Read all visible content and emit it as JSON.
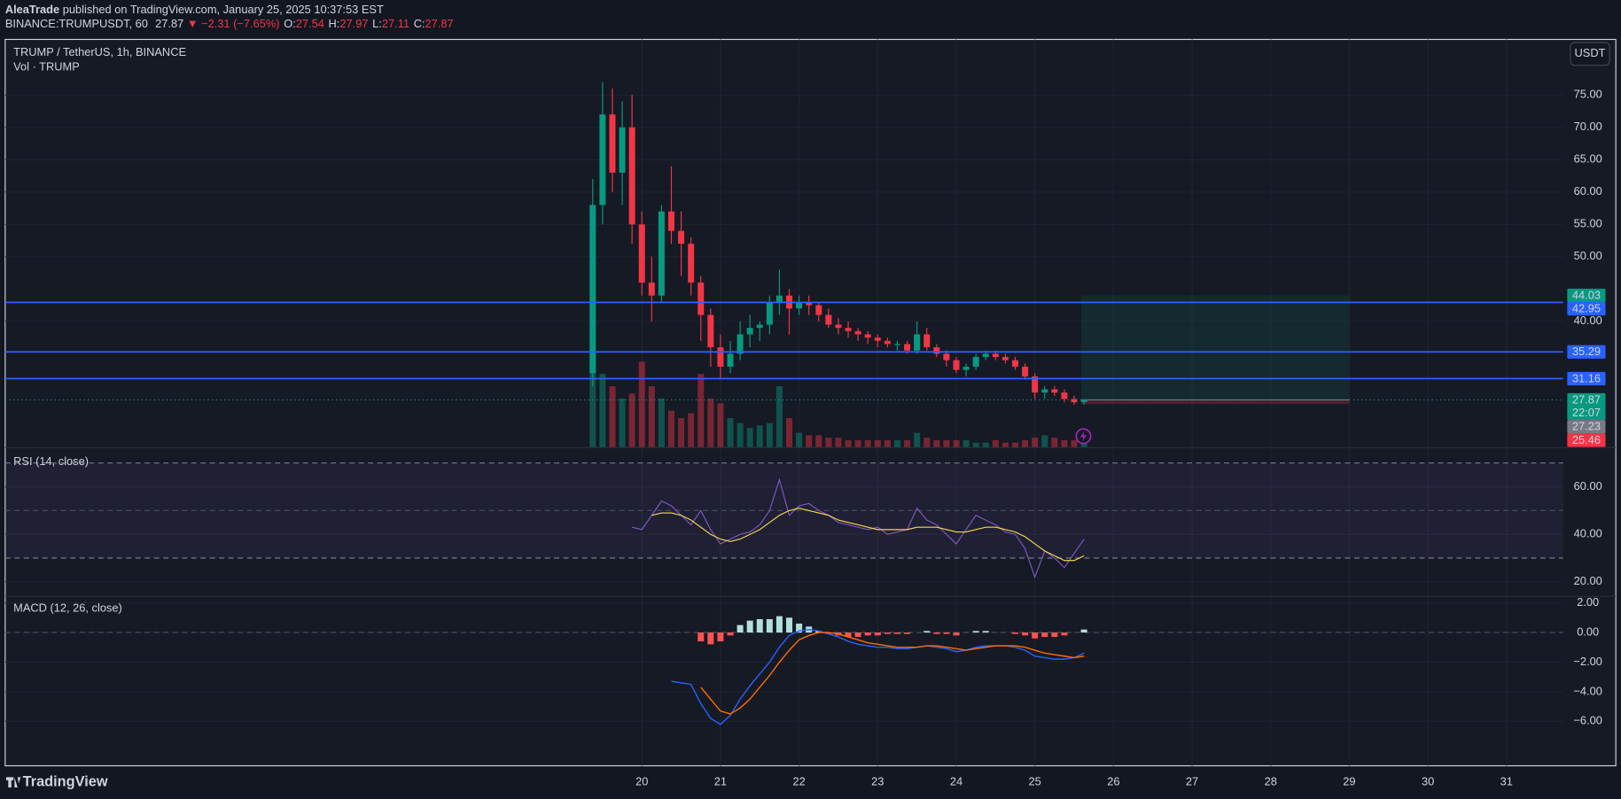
{
  "header": {
    "author": "AleaTrade",
    "published": "published on TradingView.com, January 25, 2025 10:37:53 EST",
    "symbol": "BINANCE:TRUMPUSDT, 60",
    "last": "27.87",
    "change": "▼ −2.31 (−7.65%)",
    "ohlc": [
      {
        "key": "O:",
        "value": "27.54"
      },
      {
        "key": "H:",
        "value": "27.97"
      },
      {
        "key": "L:",
        "value": "27.11"
      },
      {
        "key": "C:",
        "value": "27.87"
      }
    ],
    "currency": "USDT",
    "brand": "TradingView"
  },
  "chart_data": [
    {
      "type": "candlestick",
      "title": "TRUMP / TetherUS, 1h, BINANCE",
      "volume_label": "Vol · TRUMP",
      "up_color": "#089981",
      "down_color": "#f23645",
      "x": [
        19.375,
        19.5,
        19.625,
        19.75,
        19.875,
        20,
        20.125,
        20.25,
        20.375,
        20.5,
        20.625,
        20.75,
        20.875,
        21,
        21.125,
        21.25,
        21.375,
        21.5,
        21.625,
        21.75,
        21.875,
        22,
        22.125,
        22.25,
        22.375,
        22.5,
        22.625,
        22.75,
        22.875,
        23,
        23.125,
        23.25,
        23.375,
        23.5,
        23.625,
        23.75,
        23.875,
        24,
        24.125,
        24.25,
        24.375,
        24.5,
        24.625,
        24.75,
        24.875,
        25,
        25.125,
        25.25,
        25.375,
        25.5,
        25.625
      ],
      "open": [
        32,
        58,
        72,
        63,
        70,
        55,
        46,
        44,
        57,
        54,
        52,
        46,
        41,
        36,
        33,
        35,
        38,
        39,
        39.5,
        43,
        44,
        42,
        43,
        42.5,
        41,
        39.5,
        39,
        38.5,
        38,
        37.5,
        37,
        36.5,
        36.5,
        35.5,
        38,
        36,
        35,
        34,
        32.5,
        33,
        34.5,
        35,
        34.5,
        34,
        33,
        31.5,
        29,
        29.5,
        29,
        28,
        27.54
      ],
      "high": [
        62,
        77,
        76,
        74,
        75,
        57,
        50,
        58,
        64,
        57,
        53,
        47,
        42,
        38,
        37,
        40,
        41,
        40,
        44,
        48,
        45,
        44,
        44,
        43,
        42,
        40.5,
        40,
        39,
        38.5,
        38,
        37.5,
        37,
        37,
        40,
        39,
        36.5,
        35.5,
        34.5,
        33.5,
        35,
        35.5,
        35.5,
        35,
        34.5,
        33.5,
        32,
        30,
        30,
        29.5,
        28.5,
        27.97
      ],
      "low": [
        30,
        55,
        60,
        58,
        52,
        44,
        40,
        43,
        52,
        47,
        44,
        37,
        33,
        31,
        32,
        34,
        36,
        37,
        38,
        41,
        38,
        41,
        41,
        40,
        39,
        38,
        37.5,
        37,
        36.5,
        36,
        36,
        35.5,
        35,
        35,
        35.5,
        34.5,
        33,
        32,
        31.5,
        32.5,
        34,
        34,
        33.5,
        32.5,
        31,
        28,
        28,
        28.5,
        27.5,
        27.1,
        27.11
      ],
      "close": [
        58,
        72,
        63,
        70,
        55,
        46,
        44,
        57,
        54,
        52,
        46,
        41,
        36,
        33,
        35,
        38,
        39,
        39.5,
        43,
        44,
        42,
        43,
        42.5,
        41,
        39.5,
        39,
        38.5,
        38,
        37.5,
        37,
        36.5,
        36.5,
        35.5,
        38,
        36,
        35,
        34,
        32.5,
        33,
        34.5,
        35,
        34.5,
        34,
        33,
        31.5,
        29,
        29.5,
        29,
        28,
        27.5,
        27.87
      ],
      "volume": [
        40,
        30,
        25,
        20,
        22,
        35,
        25,
        20,
        15,
        12,
        14,
        30,
        20,
        18,
        12,
        10,
        8,
        9,
        10,
        25,
        12,
        6,
        5,
        5,
        4,
        4,
        3,
        3,
        3,
        3,
        3,
        3,
        3,
        6,
        4,
        3,
        3,
        3,
        3,
        2,
        2,
        3,
        2,
        2,
        3,
        4,
        5,
        4,
        3,
        3,
        2
      ],
      "xlim": [
        11.9,
        31.72
      ],
      "xticks": [
        20,
        21,
        22,
        23,
        24,
        25,
        26,
        27,
        28,
        29,
        30,
        31
      ],
      "ylim": [
        20.5,
        83.6
      ],
      "yticks": [
        {
          "value": 40,
          "label": "40.00"
        },
        {
          "value": 50,
          "label": "50.00"
        },
        {
          "value": 55,
          "label": "55.00"
        },
        {
          "value": 60,
          "label": "60.00"
        },
        {
          "value": 65,
          "label": "65.00"
        },
        {
          "value": 70,
          "label": "70.00"
        },
        {
          "value": 75,
          "label": "75.00"
        }
      ],
      "levels": [
        42.95,
        35.29,
        31.16
      ],
      "level_color": "#2962ff",
      "position": {
        "x": [
          25.59,
          29
        ],
        "target": 44.03,
        "entry": 27.87,
        "stop": 27.23
      },
      "price_labels": [
        {
          "value": 44.03,
          "color": "#089981"
        },
        {
          "value": 42.95,
          "color": "#2962ff"
        },
        {
          "value": 35.29,
          "color": "#2962ff"
        },
        {
          "value": 31.16,
          "color": "#2962ff"
        },
        {
          "value": 27.87,
          "color": "#089981",
          "sub": "22:07"
        },
        {
          "value": 27.23,
          "color": "#787b86"
        },
        {
          "value": 25.46,
          "color": "#f23645"
        }
      ]
    },
    {
      "type": "line",
      "title": "RSI (14, close)",
      "x": [
        19.875,
        20,
        20.125,
        20.25,
        20.375,
        20.5,
        20.625,
        20.75,
        20.875,
        21,
        21.125,
        21.25,
        21.375,
        21.5,
        21.625,
        21.75,
        21.875,
        22,
        22.125,
        22.25,
        22.375,
        22.5,
        22.625,
        22.75,
        22.875,
        23,
        23.125,
        23.25,
        23.375,
        23.5,
        23.625,
        23.75,
        23.875,
        24,
        24.125,
        24.25,
        24.375,
        24.5,
        24.625,
        24.75,
        24.875,
        25,
        25.125,
        25.25,
        25.375,
        25.5,
        25.625
      ],
      "series": [
        {
          "color": "#7e57c2",
          "values": [
            43,
            42,
            48,
            54,
            52,
            48,
            44,
            50,
            42,
            36,
            38,
            40,
            41,
            44,
            50,
            63,
            48,
            52,
            53,
            50,
            48,
            45,
            44,
            43,
            42,
            43,
            40,
            41,
            42,
            51,
            46,
            44,
            40,
            36,
            42,
            48,
            46,
            44,
            41,
            40,
            34,
            22,
            33,
            30,
            26,
            32,
            38
          ]
        },
        {
          "color": "#f7d64a",
          "values": [
            null,
            null,
            48,
            49,
            49,
            48,
            46,
            43,
            40,
            38,
            37,
            38,
            40,
            42,
            45,
            48,
            50,
            51,
            50,
            49,
            48,
            46,
            45,
            44,
            43,
            42,
            42,
            42,
            42,
            43,
            43,
            43,
            42,
            41,
            41,
            42,
            43,
            43,
            42,
            41,
            39,
            36,
            33,
            31,
            29,
            29,
            31
          ]
        }
      ],
      "band": [
        30,
        70
      ],
      "middle": 50,
      "ylim": [
        13.9,
        76.5
      ],
      "yticks": [
        {
          "value": 20,
          "label": "20.00"
        },
        {
          "value": 40,
          "label": "40.00"
        },
        {
          "value": 60,
          "label": "60.00"
        }
      ]
    },
    {
      "type": "macd",
      "title": "MACD (12, 26, close)",
      "x": [
        19.875,
        20,
        20.125,
        20.25,
        20.375,
        20.5,
        20.625,
        20.75,
        20.875,
        21,
        21.125,
        21.25,
        21.375,
        21.5,
        21.625,
        21.75,
        21.875,
        22,
        22.125,
        22.25,
        22.375,
        22.5,
        22.625,
        22.75,
        22.875,
        23,
        23.125,
        23.25,
        23.375,
        23.5,
        23.625,
        23.75,
        23.875,
        24,
        24.125,
        24.25,
        24.375,
        24.5,
        24.625,
        24.75,
        24.875,
        25,
        25.125,
        25.25,
        25.375,
        25.5,
        25.625
      ],
      "histogram": [
        null,
        null,
        null,
        null,
        null,
        null,
        null,
        -0.6,
        -0.8,
        -0.6,
        -0.2,
        0.5,
        0.8,
        0.9,
        0.9,
        1.1,
        1,
        0.6,
        0.4,
        0.1,
        -0.1,
        -0.2,
        -0.3,
        -0.3,
        -0.2,
        -0.2,
        -0.1,
        -0.1,
        -0.1,
        0,
        0.1,
        -0.1,
        -0.1,
        -0.2,
        0,
        0.1,
        0.1,
        0,
        0,
        -0.1,
        -0.2,
        -0.4,
        -0.3,
        -0.3,
        -0.2,
        0,
        0.2
      ],
      "series": [
        {
          "color": "#2962ff",
          "values": [
            null,
            null,
            null,
            null,
            -3.3,
            -3.4,
            -3.5,
            -4.8,
            -5.8,
            -6.2,
            -5.6,
            -4.5,
            -3.6,
            -2.8,
            -2,
            -1,
            -0.2,
            0.1,
            0.2,
            0.1,
            -0.1,
            -0.3,
            -0.6,
            -0.8,
            -0.9,
            -1,
            -1,
            -1.1,
            -1.1,
            -1,
            -0.9,
            -1,
            -1.1,
            -1.3,
            -1.2,
            -1,
            -0.9,
            -0.9,
            -0.9,
            -1,
            -1.2,
            -1.6,
            -1.7,
            -1.8,
            -1.8,
            -1.7,
            -1.4
          ]
        },
        {
          "color": "#ff6d00",
          "values": [
            null,
            null,
            null,
            null,
            null,
            null,
            null,
            -3.7,
            -4.5,
            -5.3,
            -5.5,
            -5.1,
            -4.5,
            -3.7,
            -2.9,
            -2,
            -1.2,
            -0.5,
            -0.2,
            0,
            0,
            -0.1,
            -0.3,
            -0.5,
            -0.7,
            -0.8,
            -0.9,
            -1,
            -1,
            -1,
            -0.9,
            -0.9,
            -1,
            -1.1,
            -1.2,
            -1.1,
            -1,
            -0.9,
            -0.9,
            -0.9,
            -1,
            -1.2,
            -1.4,
            -1.5,
            -1.6,
            -1.7,
            -1.6
          ]
        }
      ],
      "up_color": "#b2dfdb",
      "down_color": "#ff5252",
      "ylim": [
        -9,
        2.44
      ],
      "yticks": [
        {
          "value": -6,
          "label": "−6.00"
        },
        {
          "value": -4,
          "label": "−4.00"
        },
        {
          "value": -2,
          "label": "−2.00"
        },
        {
          "value": 0,
          "label": "0.00"
        },
        {
          "value": 2,
          "label": "2.00"
        }
      ]
    }
  ]
}
